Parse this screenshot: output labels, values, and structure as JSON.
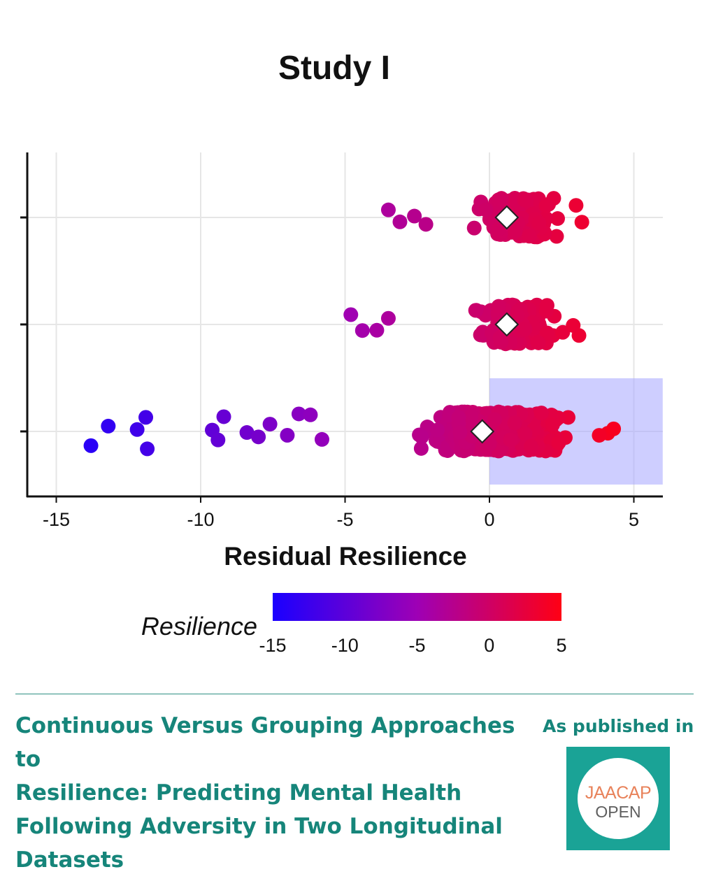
{
  "chart_data": {
    "type": "scatter",
    "title": "Study I",
    "xlabel": "Residual Resilience",
    "xlim": [
      -16,
      6
    ],
    "xticks": [
      -15,
      -10,
      -5,
      0,
      5
    ],
    "grid": true,
    "series": [
      {
        "group": 3,
        "x_min": -3.5,
        "x_max": 3.2,
        "mean": 0.6
      },
      {
        "group": 2,
        "x_min": -4.8,
        "x_max": 3.1,
        "mean": 0.6
      },
      {
        "group": 1,
        "x_min": -13.8,
        "x_max": 4.3,
        "mean": -0.25
      }
    ],
    "highlight_region": {
      "x_from": 0,
      "x_to": 6,
      "group": 1
    },
    "colorbar": {
      "label": "Resilience",
      "range": [
        -15,
        5
      ],
      "ticks": [
        -15,
        -10,
        -5,
        0,
        5
      ],
      "low_color": "#1a00ff",
      "mid_color": "#9e00b5",
      "high_color": "#ff0014"
    }
  },
  "footer": {
    "title_lines": [
      "Continuous Versus Grouping Approaches to",
      "Resilience: Predicting Mental Health",
      "Following Adversity in Two Longitudinal",
      "Datasets"
    ],
    "published_label": "As published in",
    "logo_top": "JAACAP",
    "logo_bottom": "OPEN",
    "logo_top_color": "#e8825a",
    "brand_color": "#16857a"
  }
}
